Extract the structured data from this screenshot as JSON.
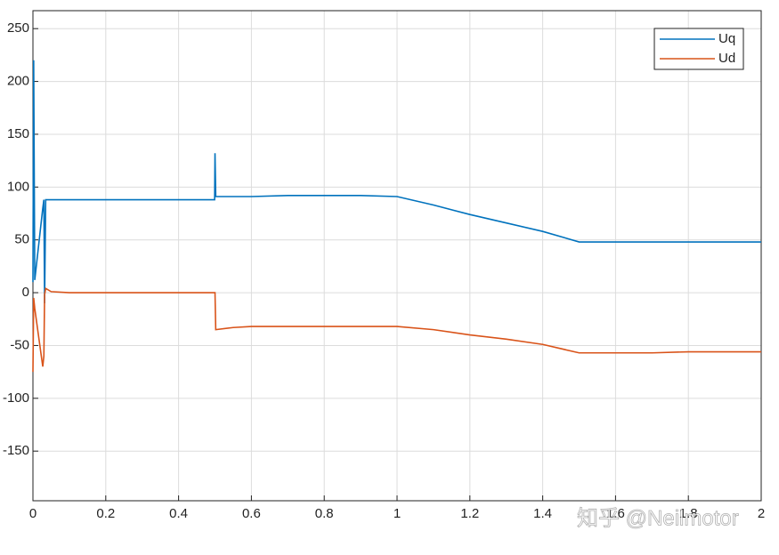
{
  "chart_data": {
    "type": "line",
    "x": [
      0,
      0.002,
      0.005,
      0.027,
      0.03,
      0.032,
      0.035,
      0.05,
      0.1,
      0.2,
      0.3,
      0.4,
      0.499,
      0.5,
      0.502,
      0.55,
      0.6,
      0.7,
      0.8,
      0.9,
      1.0,
      1.1,
      1.2,
      1.3,
      1.4,
      1.5,
      1.6,
      1.7,
      1.8,
      1.9,
      2.0
    ],
    "series": [
      {
        "name": "Uq",
        "color": "#0072bd",
        "values": [
          10,
          220,
          12,
          80,
          88,
          -10,
          88,
          88,
          88,
          88,
          88,
          88,
          88,
          132,
          91,
          91,
          91,
          92,
          92,
          92,
          91,
          83,
          74,
          66,
          58,
          48,
          48,
          48,
          48,
          48,
          48
        ]
      },
      {
        "name": "Ud",
        "color": "#d95319",
        "values": [
          -75,
          -5,
          -15,
          -70,
          -60,
          -2,
          4,
          1,
          0,
          0,
          0,
          0,
          0,
          0,
          -35,
          -33,
          -32,
          -32,
          -32,
          -32,
          -32,
          -35,
          -40,
          -44,
          -49,
          -57,
          -57,
          -57,
          -56,
          -56,
          -56
        ]
      }
    ],
    "xlim": [
      0,
      2
    ],
    "xticks": [
      0,
      0.2,
      0.4,
      0.6,
      0.8,
      1,
      1.2,
      1.4,
      1.6,
      1.8,
      2
    ],
    "ylim": [
      -197,
      267
    ],
    "yticks": [
      -150,
      -100,
      -50,
      0,
      50,
      100,
      150,
      200,
      250
    ],
    "grid": true,
    "legend": "top-right",
    "watermark": "知乎 @Neilmotor"
  }
}
